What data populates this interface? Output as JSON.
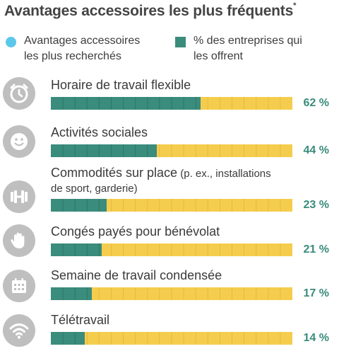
{
  "title": "Avantages accessoires les plus fréquents",
  "title_mark": "*",
  "colors": {
    "icon": "#bfbfbf",
    "legend_dot": "#5bc8ea",
    "bar_fill": "#3a8c7c",
    "bar_track": "#f5cd4e",
    "pct_text": "#3a8c7c",
    "tick": "#e8b93a"
  },
  "legend": {
    "dot_label_line1": "Avantages accessoires",
    "dot_label_line2": "les plus recherchés",
    "sq_label_line1": "% des entreprises qui",
    "sq_label_line2": "les offrent"
  },
  "chart_data": {
    "type": "bar",
    "orientation": "horizontal",
    "title": "Avantages accessoires les plus fréquents",
    "unit": "%",
    "xlim": [
      0,
      100
    ],
    "categories": [
      "Horaire de travail flexible",
      "Activités sociales",
      "Commodités sur place (p. ex., installations de sport, garderie)",
      "Congés payés pour bénévolat",
      "Semaine de travail condensée",
      "Télétravail"
    ],
    "values": [
      62,
      44,
      23,
      21,
      17,
      14
    ],
    "series": [
      {
        "name": "% des entreprises qui les offrent",
        "values": [
          62,
          44,
          23,
          21,
          17,
          14
        ]
      }
    ]
  },
  "rows": [
    {
      "icon": "clock-icon",
      "label": "Horaire de travail flexible",
      "pct": "62 %"
    },
    {
      "icon": "smiley-icon",
      "label": "Activités sociales",
      "pct": "44 %"
    },
    {
      "icon": "dumbbell-icon",
      "label": "Commodités sur place",
      "label_sub": " (p. ex., installations",
      "label_line2": "de sport, garderie)",
      "pct": "23 %"
    },
    {
      "icon": "hand-icon",
      "label": "Congés payés pour bénévolat",
      "pct": "21 %"
    },
    {
      "icon": "calendar-icon",
      "label": "Semaine de travail condensée",
      "pct": "17 %"
    },
    {
      "icon": "wifi-icon",
      "label": "Télétravail",
      "pct": "14 %"
    }
  ]
}
